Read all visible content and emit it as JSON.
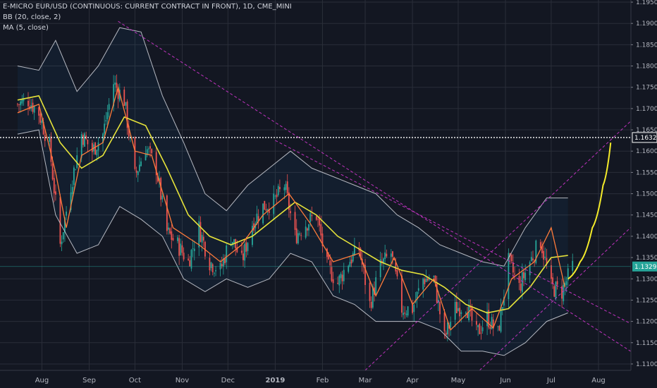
{
  "legend": {
    "symbol": "E-MICRO EUR/USD (CONTINUOUS: CURRENT CONTRACT IN FRONT), 1D, CME_MINI",
    "bb": "BB (20, close, 2)",
    "ma": "MA (5, close)"
  },
  "colors": {
    "background": "#131722",
    "grid": "#2a2e39",
    "up": "#26a69a",
    "down": "#ef5350",
    "ma": "#ff7b3a",
    "bb_basis": "#e6e33a",
    "bb_band": "#d1d4dc",
    "bb_fill": "rgba(33,150,243,0.06)",
    "channel": "#c033c0",
    "dotted": "#ffffff",
    "projection": "#f5ec2a",
    "last_price_line": "#26a69a"
  },
  "chart_data": {
    "type": "candlestick",
    "title": "E-MICRO EUR/USD (CONTINUOUS: CURRENT CONTRACT IN FRONT), 1D, CME_MINI",
    "indicators": [
      "BB (20, close, 2)",
      "MA (5, close)"
    ],
    "ylim": [
      1.1085,
      1.1955
    ],
    "y_ticks": [
      "1.1950",
      "1.1900",
      "1.1850",
      "1.1800",
      "1.1750",
      "1.1700",
      "1.1650",
      "1.1600",
      "1.1550",
      "1.1500",
      "1.1450",
      "1.1400",
      "1.1350",
      "1.1300",
      "1.1250",
      "1.1200",
      "1.1150",
      "1.1100"
    ],
    "x_tick_labels": [
      {
        "label": "Aug",
        "date": "2018-08-01",
        "bold": false
      },
      {
        "label": "Sep",
        "date": "2018-09-01",
        "bold": false
      },
      {
        "label": "Oct",
        "date": "2018-10-01",
        "bold": false
      },
      {
        "label": "Nov",
        "date": "2018-11-01",
        "bold": false
      },
      {
        "label": "Dec",
        "date": "2018-12-01",
        "bold": false
      },
      {
        "label": "2019",
        "date": "2019-01-01",
        "bold": true
      },
      {
        "label": "Feb",
        "date": "2019-02-01",
        "bold": false
      },
      {
        "label": "Mar",
        "date": "2019-03-01",
        "bold": false
      },
      {
        "label": "Apr",
        "date": "2019-04-01",
        "bold": false
      },
      {
        "label": "May",
        "date": "2019-05-01",
        "bold": false
      },
      {
        "label": "Jun",
        "date": "2019-06-01",
        "bold": false
      },
      {
        "label": "Jul",
        "date": "2019-07-01",
        "bold": false
      },
      {
        "label": "Aug",
        "date": "2019-08-01",
        "bold": false
      }
    ],
    "close_path": [
      [
        "2018-07-16",
        1.171
      ],
      [
        "2018-07-23",
        1.172
      ],
      [
        "2018-07-30",
        1.169
      ],
      [
        "2018-08-06",
        1.161
      ],
      [
        "2018-08-13",
        1.138
      ],
      [
        "2018-08-20",
        1.152
      ],
      [
        "2018-08-27",
        1.164
      ],
      [
        "2018-09-03",
        1.16
      ],
      [
        "2018-09-10",
        1.164
      ],
      [
        "2018-09-17",
        1.176
      ],
      [
        "2018-09-24",
        1.172
      ],
      [
        "2018-10-01",
        1.154
      ],
      [
        "2018-10-08",
        1.161
      ],
      [
        "2018-10-15",
        1.156
      ],
      [
        "2018-10-22",
        1.141
      ],
      [
        "2018-10-29",
        1.138
      ],
      [
        "2018-11-05",
        1.134
      ],
      [
        "2018-11-12",
        1.142
      ],
      [
        "2018-11-19",
        1.134
      ],
      [
        "2018-11-26",
        1.132
      ],
      [
        "2018-12-03",
        1.14
      ],
      [
        "2018-12-10",
        1.134
      ],
      [
        "2018-12-17",
        1.143
      ],
      [
        "2018-12-24",
        1.147
      ],
      [
        "2018-12-31",
        1.148
      ],
      [
        "2019-01-07",
        1.152
      ],
      [
        "2019-01-14",
        1.14
      ],
      [
        "2019-01-21",
        1.143
      ],
      [
        "2019-01-28",
        1.145
      ],
      [
        "2019-02-04",
        1.133
      ],
      [
        "2019-02-11",
        1.129
      ],
      [
        "2019-02-18",
        1.134
      ],
      [
        "2019-02-25",
        1.137
      ],
      [
        "2019-03-04",
        1.124
      ],
      [
        "2019-03-11",
        1.133
      ],
      [
        "2019-03-18",
        1.136
      ],
      [
        "2019-03-25",
        1.123
      ],
      [
        "2019-04-01",
        1.123
      ],
      [
        "2019-04-08",
        1.13
      ],
      [
        "2019-04-15",
        1.13
      ],
      [
        "2019-04-22",
        1.116
      ],
      [
        "2019-04-29",
        1.123
      ],
      [
        "2019-05-06",
        1.124
      ],
      [
        "2019-05-13",
        1.117
      ],
      [
        "2019-05-20",
        1.121
      ],
      [
        "2019-05-27",
        1.117
      ],
      [
        "2019-06-03",
        1.134
      ],
      [
        "2019-06-10",
        1.128
      ],
      [
        "2019-06-17",
        1.134
      ],
      [
        "2019-06-24",
        1.139
      ],
      [
        "2019-07-01",
        1.128
      ],
      [
        "2019-07-08",
        1.127
      ],
      [
        "2019-07-15",
        1.1329
      ]
    ],
    "ma_5": [
      [
        "2018-07-16",
        1.169
      ],
      [
        "2018-07-30",
        1.171
      ],
      [
        "2018-08-10",
        1.155
      ],
      [
        "2018-08-17",
        1.142
      ],
      [
        "2018-08-27",
        1.159
      ],
      [
        "2018-09-10",
        1.162
      ],
      [
        "2018-09-20",
        1.175
      ],
      [
        "2018-10-01",
        1.16
      ],
      [
        "2018-10-12",
        1.159
      ],
      [
        "2018-10-26",
        1.142
      ],
      [
        "2018-11-12",
        1.138
      ],
      [
        "2018-11-26",
        1.134
      ],
      [
        "2018-12-10",
        1.138
      ],
      [
        "2018-12-24",
        1.145
      ],
      [
        "2019-01-10",
        1.15
      ],
      [
        "2019-01-24",
        1.143
      ],
      [
        "2019-02-08",
        1.134
      ],
      [
        "2019-02-25",
        1.136
      ],
      [
        "2019-03-08",
        1.126
      ],
      [
        "2019-03-20",
        1.135
      ],
      [
        "2019-04-01",
        1.124
      ],
      [
        "2019-04-15",
        1.13
      ],
      [
        "2019-04-26",
        1.118
      ],
      [
        "2019-05-10",
        1.123
      ],
      [
        "2019-05-24",
        1.1185
      ],
      [
        "2019-06-05",
        1.13
      ],
      [
        "2019-06-20",
        1.134
      ],
      [
        "2019-07-01",
        1.142
      ],
      [
        "2019-07-10",
        1.128
      ]
    ],
    "bb_basis": [
      [
        "2018-07-16",
        1.172
      ],
      [
        "2018-07-30",
        1.173
      ],
      [
        "2018-08-13",
        1.162
      ],
      [
        "2018-08-27",
        1.156
      ],
      [
        "2018-09-10",
        1.159
      ],
      [
        "2018-09-24",
        1.168
      ],
      [
        "2018-10-08",
        1.166
      ],
      [
        "2018-10-22",
        1.156
      ],
      [
        "2018-11-05",
        1.145
      ],
      [
        "2018-11-19",
        1.14
      ],
      [
        "2018-12-03",
        1.138
      ],
      [
        "2018-12-17",
        1.14
      ],
      [
        "2018-12-31",
        1.144
      ],
      [
        "2019-01-14",
        1.148
      ],
      [
        "2019-01-28",
        1.145
      ],
      [
        "2019-02-11",
        1.14
      ],
      [
        "2019-02-25",
        1.137
      ],
      [
        "2019-03-11",
        1.134
      ],
      [
        "2019-03-25",
        1.132
      ],
      [
        "2019-04-08",
        1.131
      ],
      [
        "2019-04-22",
        1.128
      ],
      [
        "2019-05-06",
        1.124
      ],
      [
        "2019-05-20",
        1.122
      ],
      [
        "2019-06-03",
        1.123
      ],
      [
        "2019-06-17",
        1.128
      ],
      [
        "2019-07-01",
        1.135
      ],
      [
        "2019-07-12",
        1.1355
      ]
    ],
    "bb_upper": [
      [
        "2018-07-16",
        1.18
      ],
      [
        "2018-07-30",
        1.179
      ],
      [
        "2018-08-10",
        1.186
      ],
      [
        "2018-08-24",
        1.174
      ],
      [
        "2018-09-07",
        1.18
      ],
      [
        "2018-09-21",
        1.189
      ],
      [
        "2018-10-05",
        1.188
      ],
      [
        "2018-10-19",
        1.173
      ],
      [
        "2018-11-02",
        1.162
      ],
      [
        "2018-11-16",
        1.15
      ],
      [
        "2018-11-30",
        1.146
      ],
      [
        "2018-12-14",
        1.152
      ],
      [
        "2018-12-28",
        1.156
      ],
      [
        "2019-01-11",
        1.16
      ],
      [
        "2019-01-25",
        1.156
      ],
      [
        "2019-02-08",
        1.154
      ],
      [
        "2019-02-22",
        1.152
      ],
      [
        "2019-03-08",
        1.15
      ],
      [
        "2019-03-22",
        1.145
      ],
      [
        "2019-04-05",
        1.142
      ],
      [
        "2019-04-19",
        1.138
      ],
      [
        "2019-05-03",
        1.136
      ],
      [
        "2019-05-17",
        1.134
      ],
      [
        "2019-05-31",
        1.133
      ],
      [
        "2019-06-14",
        1.142
      ],
      [
        "2019-06-28",
        1.149
      ],
      [
        "2019-07-12",
        1.149
      ]
    ],
    "bb_lower": [
      [
        "2018-07-16",
        1.164
      ],
      [
        "2018-07-30",
        1.165
      ],
      [
        "2018-08-10",
        1.145
      ],
      [
        "2018-08-24",
        1.136
      ],
      [
        "2018-09-07",
        1.138
      ],
      [
        "2018-09-21",
        1.147
      ],
      [
        "2018-10-05",
        1.144
      ],
      [
        "2018-10-19",
        1.14
      ],
      [
        "2018-11-02",
        1.13
      ],
      [
        "2018-11-16",
        1.127
      ],
      [
        "2018-11-30",
        1.13
      ],
      [
        "2018-12-14",
        1.128
      ],
      [
        "2018-12-28",
        1.13
      ],
      [
        "2019-01-11",
        1.136
      ],
      [
        "2019-01-25",
        1.134
      ],
      [
        "2019-02-08",
        1.126
      ],
      [
        "2019-02-22",
        1.124
      ],
      [
        "2019-03-08",
        1.12
      ],
      [
        "2019-03-22",
        1.12
      ],
      [
        "2019-04-05",
        1.12
      ],
      [
        "2019-04-19",
        1.118
      ],
      [
        "2019-05-03",
        1.113
      ],
      [
        "2019-05-17",
        1.113
      ],
      [
        "2019-05-31",
        1.112
      ],
      [
        "2019-06-14",
        1.115
      ],
      [
        "2019-06-28",
        1.12
      ],
      [
        "2019-07-12",
        1.122
      ]
    ],
    "channel_lines": [
      {
        "name": "descending-upper",
        "points": [
          [
            "2018-09-20",
            1.1905
          ],
          [
            "2019-08-22",
            1.113
          ]
        ]
      },
      {
        "name": "descending-lower",
        "points": [
          [
            "2019-01-01",
            1.1625
          ],
          [
            "2019-08-22",
            1.1195
          ]
        ]
      },
      {
        "name": "ascending-upper",
        "points": [
          [
            "2019-03-01",
            1.1085
          ],
          [
            "2019-08-22",
            1.167
          ]
        ]
      },
      {
        "name": "ascending-lower",
        "points": [
          [
            "2019-05-15",
            1.1085
          ],
          [
            "2019-08-22",
            1.142
          ]
        ]
      }
    ],
    "projection": [
      [
        "2019-07-12",
        1.13
      ],
      [
        "2019-07-20",
        1.134
      ],
      [
        "2019-07-28",
        1.142
      ],
      [
        "2019-08-04",
        1.152
      ],
      [
        "2019-08-09",
        1.162
      ]
    ],
    "horizontal_level": 1.1632,
    "last_price": 1.1329,
    "price_labels": [
      {
        "value": "1.1632",
        "level": 1.1632,
        "style": "white"
      },
      {
        "value": "1.1329",
        "level": 1.1329,
        "style": "teal"
      }
    ]
  }
}
